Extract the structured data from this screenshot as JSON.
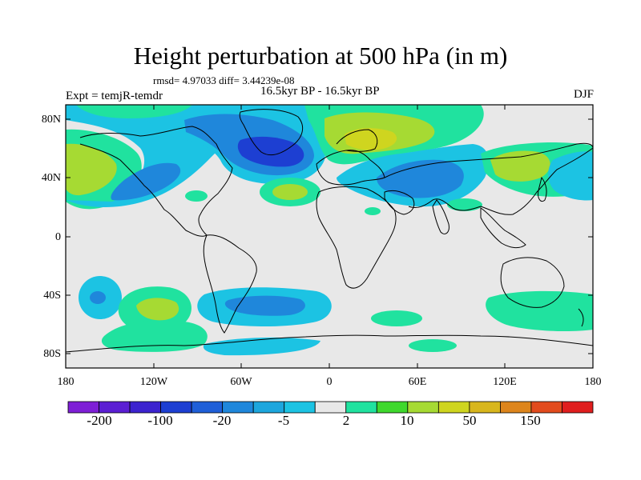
{
  "title": "Height perturbation at 500 hPa (in m)",
  "stats": "rmsd= 4.97033 diff= 3.44239e-08",
  "experiment": "Expt = temjR-temdr",
  "period": "16.5kyr BP - 16.5kyr BP",
  "season": "DJF",
  "lat_ticks": [
    "80N",
    "40N",
    "0",
    "40S",
    "80S"
  ],
  "lon_ticks": [
    "180",
    "120W",
    "60W",
    "0",
    "60E",
    "120E",
    "180"
  ],
  "colorbar": {
    "colors": [
      "#7e1fd6",
      "#5b1fd3",
      "#3c23cf",
      "#1d3fd2",
      "#1f5fd8",
      "#1f87db",
      "#1da6dd",
      "#1cc3e3",
      "#e8e8e8",
      "#20e29f",
      "#3fd82d",
      "#a6da33",
      "#cfd51f",
      "#d8b61d",
      "#dd851c",
      "#e24b1d",
      "#e01e1e"
    ],
    "labels": [
      "-200",
      "-100",
      "-20",
      "-5",
      "2",
      "10",
      "50",
      "150"
    ]
  },
  "palette": {
    "neg_light": "#1cc3e3",
    "neg_mid": "#1f87db",
    "neg_dark": "#1d3fd2",
    "pos_light": "#20e29f",
    "pos_mid": "#a6da33",
    "pos_dark": "#cfd51f",
    "zero": "#e8e8e8"
  }
}
